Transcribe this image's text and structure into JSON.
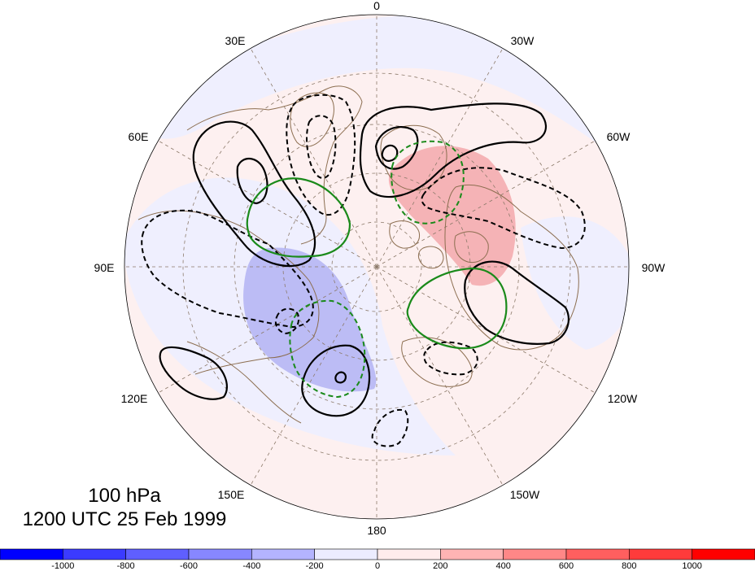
{
  "map": {
    "projection": "north-polar-stereographic",
    "longitude_labels": [
      "0",
      "30W",
      "60W",
      "90W",
      "120W",
      "150W",
      "180",
      "150E",
      "120E",
      "90E",
      "60E",
      "30E"
    ],
    "longitude_values": [
      0,
      -30,
      -60,
      -90,
      -120,
      -150,
      180,
      150,
      120,
      90,
      60,
      30
    ],
    "grid_line_style": "dashed",
    "coastline_color": "#8c6e50",
    "grid_color": "#8c7a6a"
  },
  "caption": {
    "level": "100 hPa",
    "datetime": "1200 UTC 25 Feb 1999"
  },
  "colorbar": {
    "tick_labels": [
      "-1000",
      "-800",
      "-600",
      "-400",
      "-200",
      "0",
      "200",
      "400",
      "600",
      "800",
      "1000"
    ],
    "colors": [
      "#0000ff",
      "#3b3bff",
      "#5f5fff",
      "#8787ff",
      "#b4b4ff",
      "#ececff",
      "#ffecec",
      "#ffb4b4",
      "#ff8787",
      "#ff5f5f",
      "#ff3b3b",
      "#ff0000"
    ]
  },
  "anomaly_shading": {
    "positive_strong_color": "#f5b3b6",
    "positive_weak_color": "#fdeeee",
    "negative_strong_color": "#bcbcf5",
    "negative_weak_color": "#efeffe"
  },
  "contour_colors": {
    "primary": "#000000",
    "secondary": "#1a8a1a"
  }
}
